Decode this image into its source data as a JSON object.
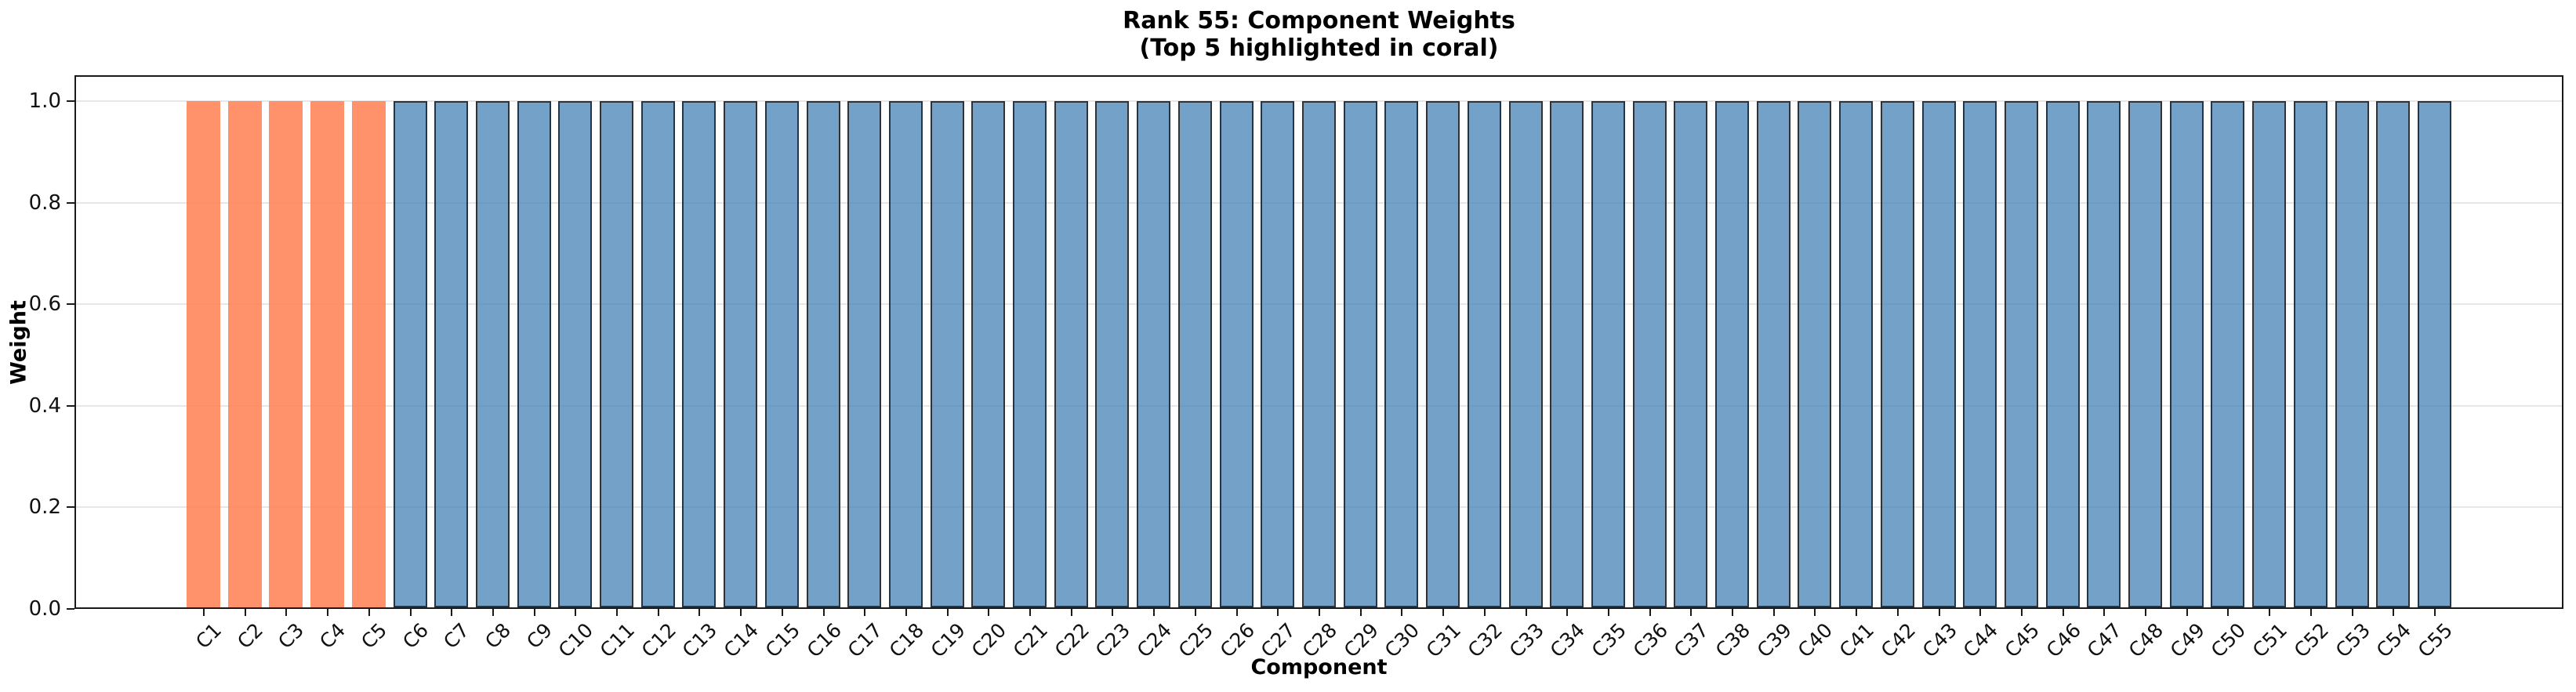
{
  "chart_data": {
    "type": "bar",
    "title": "Rank 55: Component Weights",
    "subtitle": "(Top 5 highlighted in coral)",
    "xlabel": "Component",
    "ylabel": "Weight",
    "categories": [
      "C1",
      "C2",
      "C3",
      "C4",
      "C5",
      "C6",
      "C7",
      "C8",
      "C9",
      "C10",
      "C11",
      "C12",
      "C13",
      "C14",
      "C15",
      "C16",
      "C17",
      "C18",
      "C19",
      "C20",
      "C21",
      "C22",
      "C23",
      "C24",
      "C25",
      "C26",
      "C27",
      "C28",
      "C29",
      "C30",
      "C31",
      "C32",
      "C33",
      "C34",
      "C35",
      "C36",
      "C37",
      "C38",
      "C39",
      "C40",
      "C41",
      "C42",
      "C43",
      "C44",
      "C45",
      "C46",
      "C47",
      "C48",
      "C49",
      "C50",
      "C51",
      "C52",
      "C53",
      "C54",
      "C55"
    ],
    "values": [
      1.0,
      1.0,
      1.0,
      1.0,
      1.0,
      1.0,
      1.0,
      1.0,
      1.0,
      1.0,
      1.0,
      1.0,
      1.0,
      1.0,
      1.0,
      1.0,
      1.0,
      1.0,
      1.0,
      1.0,
      1.0,
      1.0,
      1.0,
      1.0,
      1.0,
      1.0,
      1.0,
      1.0,
      1.0,
      1.0,
      1.0,
      1.0,
      1.0,
      1.0,
      1.0,
      1.0,
      1.0,
      1.0,
      1.0,
      1.0,
      1.0,
      1.0,
      1.0,
      1.0,
      1.0,
      1.0,
      1.0,
      1.0,
      1.0,
      1.0,
      1.0,
      1.0,
      1.0,
      1.0,
      1.0
    ],
    "highlight_count": 5,
    "yticks": [
      0.0,
      0.2,
      0.4,
      0.6,
      0.8,
      1.0
    ],
    "ytick_labels": [
      "0.0",
      "0.2",
      "0.4",
      "0.6",
      "0.8",
      "1.0"
    ],
    "ylim": [
      0,
      1.05
    ],
    "grid": "horizontal",
    "legend": "none",
    "colors": {
      "highlight_fill": "rgba(255,127,80,0.85)",
      "default_fill": "rgba(70,130,180,0.75)",
      "default_edge": "rgba(25,25,25,0.8)",
      "gridline": "#e7e7e7",
      "spine": "#1a1a1a"
    }
  }
}
